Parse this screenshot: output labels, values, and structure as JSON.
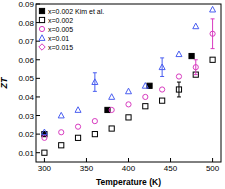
{
  "chart_data": {
    "type": "scatter",
    "x_label": "Temperature (K)",
    "y_label": "ZT",
    "xlim": [
      290,
      510
    ],
    "xticks": [
      300,
      350,
      400,
      450,
      500
    ],
    "ylim": [
      0.005,
      0.09
    ],
    "yticks": [
      0.01,
      0.02,
      0.03,
      0.04,
      0.05,
      0.06,
      0.07,
      0.08,
      0.09
    ],
    "legend": "top-left",
    "series": [
      {
        "name": "x=0.002 Kim et al.",
        "color": "#000000",
        "marker": "filled-square",
        "x": [
          300,
          375,
          425,
          475
        ],
        "values": [
          0.02,
          0.033,
          0.046,
          0.062
        ],
        "errors": [
          null,
          null,
          null,
          null
        ]
      },
      {
        "name": "x=0.002",
        "color": "#000000",
        "marker": "open-square",
        "x": [
          300,
          320,
          340,
          360,
          380,
          400,
          420,
          440,
          460,
          480,
          500
        ],
        "values": [
          0.01,
          0.014,
          0.018,
          0.02,
          0.023,
          0.029,
          0.035,
          0.038,
          0.044,
          0.052,
          0.06
        ],
        "errors": [
          null,
          null,
          null,
          null,
          null,
          null,
          null,
          null,
          0.004,
          null,
          null
        ]
      },
      {
        "name": "x=0.005",
        "color": "#d83cc0",
        "marker": "open-circle",
        "x": [
          300,
          320,
          340,
          360,
          380,
          400,
          420,
          440,
          460,
          480,
          500
        ],
        "values": [
          0.018,
          0.021,
          0.024,
          0.027,
          0.033,
          0.036,
          0.04,
          0.044,
          0.051,
          0.056,
          0.074
        ],
        "errors": [
          null,
          null,
          null,
          null,
          null,
          null,
          null,
          null,
          null,
          0.004,
          0.008
        ]
      },
      {
        "name": "x=0.01",
        "color": "#4a5ef0",
        "marker": "open-triangle",
        "x": [
          300,
          320,
          340,
          360,
          380,
          400,
          420,
          440,
          460,
          480,
          500
        ],
        "values": [
          0.021,
          0.03,
          0.033,
          0.048,
          0.04,
          0.043,
          0.046,
          0.056,
          0.063,
          0.078,
          0.087
        ],
        "errors": [
          null,
          null,
          null,
          0.005,
          null,
          null,
          null,
          0.005,
          null,
          null,
          null
        ]
      },
      {
        "name": "x=0.015",
        "color": "#d83cc0",
        "marker": "open-diamond",
        "x": [],
        "values": [],
        "errors": []
      }
    ]
  }
}
